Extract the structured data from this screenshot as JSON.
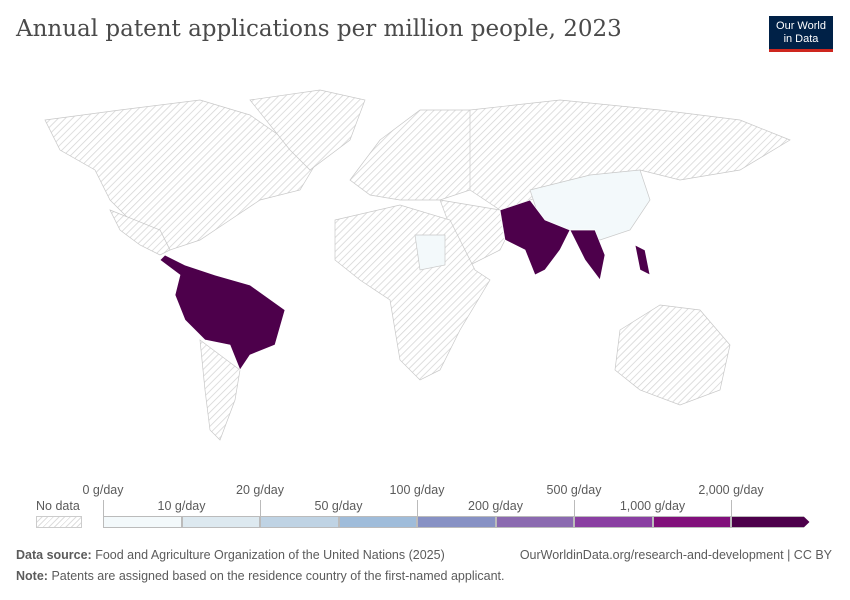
{
  "title": "Annual patent applications per million people, 2023",
  "logo": {
    "line1": "Our World",
    "line2": "in Data"
  },
  "legend": {
    "no_data": "No data",
    "labels": [
      "0 g/day",
      "10 g/day",
      "20 g/day",
      "50 g/day",
      "100 g/day",
      "200 g/day",
      "500 g/day",
      "1,000 g/day",
      "2,000 g/day"
    ],
    "colors": [
      "#f3f9fb",
      "#dde9f0",
      "#bfd3e4",
      "#9fbcda",
      "#8791c4",
      "#8b6ab0",
      "#8a3fa2",
      "#81107b",
      "#4d004b"
    ]
  },
  "map": {
    "no_data_color": "#e8e8e8",
    "highlight_regions": {
      "latin_america": "#4d004b",
      "south_asia": "#4d004b",
      "southeast_asia": "#4d004b",
      "china": "#f3f9fb",
      "sudan": "#f3f9fb"
    }
  },
  "footer": {
    "source_label": "Data source:",
    "source": "Food and Agriculture Organization of the United Nations (2025)",
    "url": "OurWorldinData.org/research-and-development | CC BY",
    "note_label": "Note:",
    "note": "Patents are assigned based on the residence country of the first-named applicant."
  }
}
